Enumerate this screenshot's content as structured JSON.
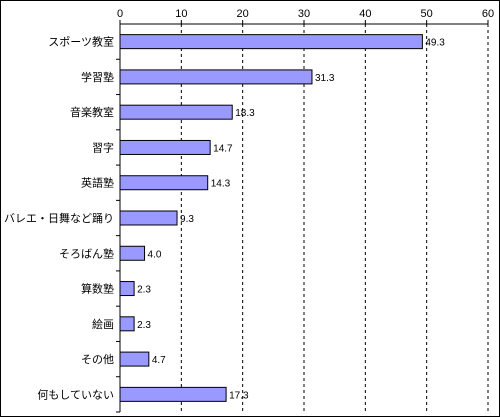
{
  "chart_data": {
    "type": "bar",
    "orientation": "horizontal",
    "categories": [
      "スポーツ教室",
      "学習塾",
      "音楽教室",
      "習字",
      "英語塾",
      "バレエ・日舞など踊り",
      "そろばん塾",
      "算数塾",
      "絵画",
      "その他",
      "何もしていない"
    ],
    "values": [
      49.3,
      31.3,
      18.3,
      14.7,
      14.3,
      9.3,
      4.0,
      2.3,
      2.3,
      4.7,
      17.3
    ],
    "value_labels": [
      "49.3",
      "31.3",
      "18.3",
      "14.7",
      "14.3",
      "9.3",
      "4.0",
      "2.3",
      "2.3",
      "4.7",
      "17.3"
    ],
    "xticks": [
      0,
      10,
      20,
      30,
      40,
      50,
      60
    ],
    "xlim": [
      0,
      60
    ],
    "x_axis_position": "top",
    "gridlines": "dashed-vertical",
    "title": "",
    "xlabel": "",
    "ylabel": "",
    "bar_color": "#9999ff",
    "bar_border": "#000000"
  }
}
